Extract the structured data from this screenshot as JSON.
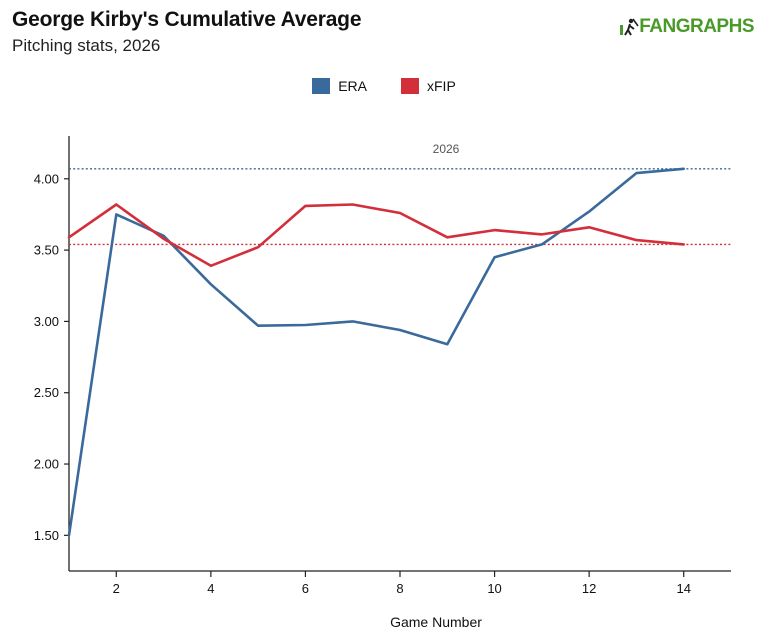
{
  "header": {
    "title": "George Kirby's Cumulative Average",
    "subtitle": "Pitching stats, 2026",
    "brand_part1": "FAN",
    "brand_part2": "GRAPHS"
  },
  "colors": {
    "era": "#3a6a9c",
    "xfip": "#d32f3a",
    "brand": "#4a9a2a",
    "axis": "#222222"
  },
  "chart_data": {
    "type": "line",
    "title": "George Kirby's Cumulative Average",
    "subtitle": "Pitching stats, 2026",
    "xlabel": "Game Number",
    "ylabel": "",
    "xlim": [
      1,
      15
    ],
    "ylim": [
      1.25,
      4.3
    ],
    "x_ticks": [
      2,
      4,
      6,
      8,
      10,
      12,
      14
    ],
    "y_ticks": [
      1.5,
      2.0,
      2.5,
      3.0,
      3.5,
      4.0
    ],
    "y_tick_labels": [
      "1.50",
      "2.00",
      "2.50",
      "3.00",
      "3.50",
      "4.00"
    ],
    "legend_position": "top-center",
    "grid": false,
    "x": [
      1,
      2,
      3,
      4,
      5,
      6,
      7,
      8,
      9,
      10,
      11,
      12,
      13,
      14
    ],
    "series": [
      {
        "name": "ERA",
        "color": "#3a6a9c",
        "values": [
          1.5,
          3.75,
          3.6,
          3.26,
          2.97,
          2.975,
          3.0,
          2.94,
          2.84,
          3.45,
          3.54,
          3.77,
          4.04,
          4.07
        ]
      },
      {
        "name": "xFIP",
        "color": "#d32f3a",
        "values": [
          3.59,
          3.82,
          3.58,
          3.39,
          3.52,
          3.81,
          3.82,
          3.76,
          3.59,
          3.64,
          3.61,
          3.66,
          3.57,
          3.54
        ]
      }
    ],
    "reference_lines": [
      {
        "series": "ERA",
        "value": 4.07,
        "style": "dotted",
        "label": "2026"
      },
      {
        "series": "xFIP",
        "value": 3.54,
        "style": "dotted",
        "label": ""
      }
    ]
  }
}
